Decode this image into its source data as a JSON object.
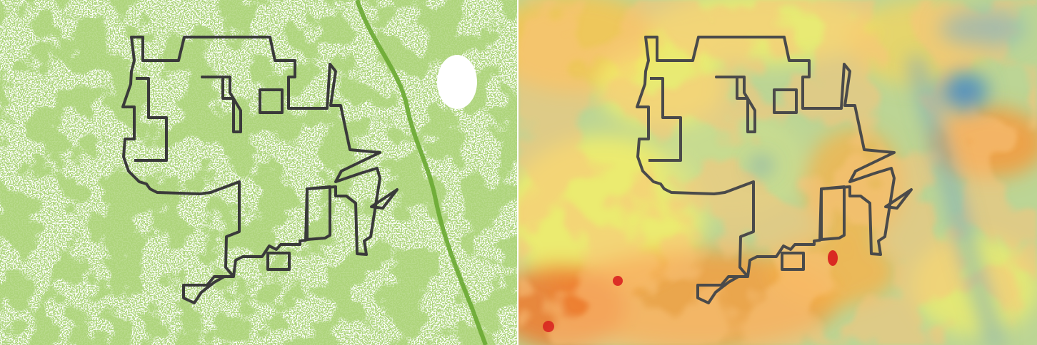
{
  "colors": {
    "canopy": "#6aa832",
    "background": "#ffffff",
    "boundary": "#3a3a3a",
    "heat_low": "#4f8fbf",
    "heat_mid": "#f3ef6a",
    "heat_high": "#d7191c"
  },
  "layers": {
    "left": "tree-canopy-cover",
    "right": "surface-temperature-heatmap"
  }
}
